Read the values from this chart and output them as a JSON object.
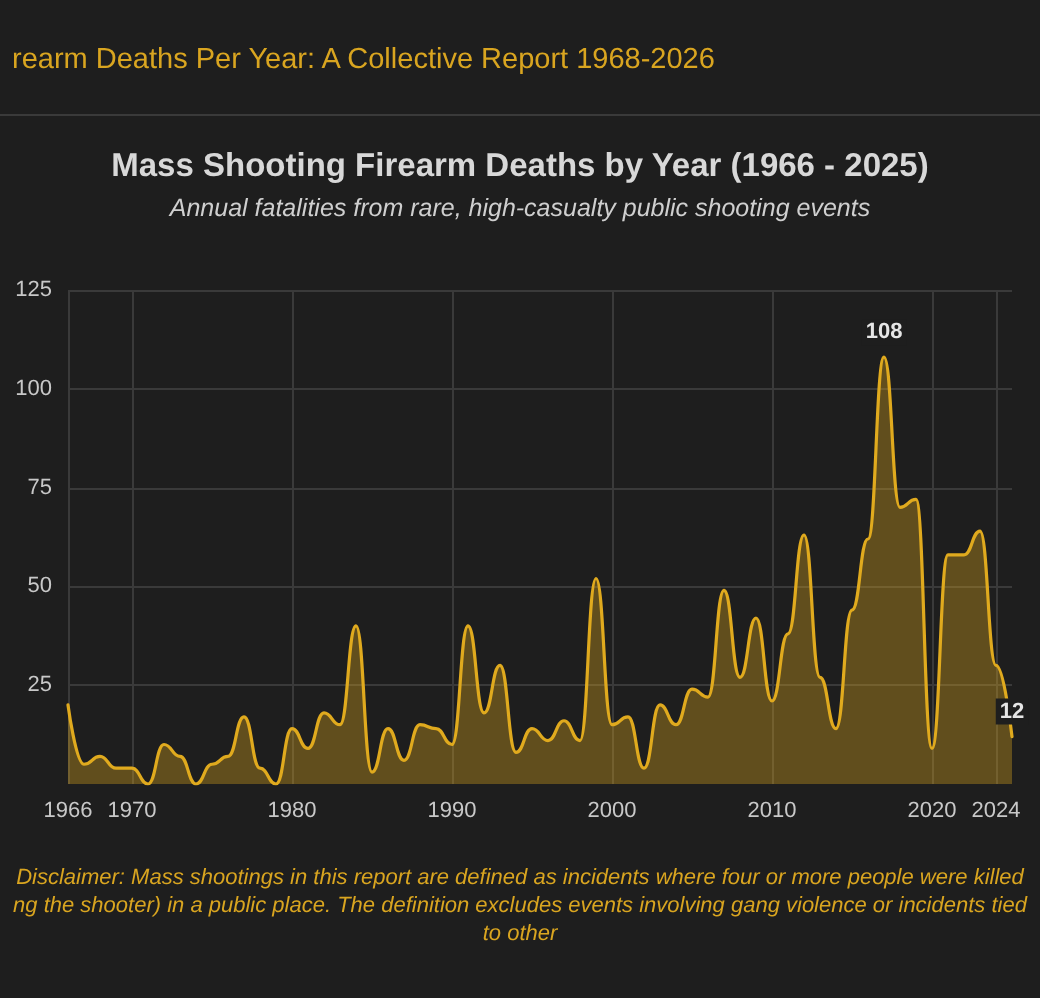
{
  "chart_data": {
    "type": "area",
    "title": "Mass Shooting Firearm Deaths by Year (1966 - 2025)",
    "subtitle": "Annual fatalities from rare, high-casualty public shooting events",
    "annotations": [
      "rearm Deaths Per Year: A Collective Report 1968-2026",
      "Disclaimer: Mass shootings in this report are defined as incidents where four or more people were killed ng the shooter) in a public place. The definition excludes events involving gang violence or incidents tied to other"
    ],
    "x": [
      1966,
      1967,
      1968,
      1969,
      1970,
      1971,
      1972,
      1973,
      1974,
      1975,
      1976,
      1977,
      1978,
      1979,
      1980,
      1981,
      1982,
      1983,
      1984,
      1985,
      1986,
      1987,
      1988,
      1989,
      1990,
      1991,
      1992,
      1993,
      1994,
      1995,
      1996,
      1997,
      1998,
      1999,
      2000,
      2001,
      2002,
      2003,
      2004,
      2005,
      2006,
      2007,
      2008,
      2009,
      2010,
      2011,
      2012,
      2013,
      2014,
      2015,
      2016,
      2017,
      2018,
      2019,
      2020,
      2021,
      2022,
      2023,
      2024,
      2025
    ],
    "series": [
      {
        "color": "#e0aa1e",
        "values": [
          20,
          5,
          7,
          4,
          4,
          0,
          10,
          7,
          0,
          5,
          7,
          17,
          4,
          0,
          14,
          9,
          18,
          15,
          40,
          3,
          14,
          6,
          15,
          14,
          10,
          40,
          18,
          30,
          8,
          14,
          11,
          16,
          11,
          52,
          15,
          17,
          4,
          20,
          15,
          24,
          22,
          49,
          27,
          42,
          21,
          38,
          63,
          27,
          14,
          44,
          62,
          108,
          70,
          72,
          9,
          58,
          58,
          64,
          30,
          12
        ],
        "value_labels": [
          null,
          null,
          null,
          null,
          null,
          null,
          null,
          null,
          null,
          null,
          null,
          null,
          null,
          null,
          null,
          null,
          null,
          null,
          null,
          null,
          null,
          null,
          null,
          null,
          null,
          null,
          null,
          null,
          null,
          null,
          null,
          null,
          null,
          null,
          null,
          null,
          null,
          null,
          null,
          null,
          null,
          null,
          null,
          null,
          null,
          null,
          null,
          null,
          null,
          null,
          null,
          "108",
          null,
          null,
          null,
          null,
          null,
          null,
          null,
          "12"
        ]
      }
    ],
    "xlim": [
      1966,
      2025
    ],
    "xticks": [
      1966,
      1970,
      1980,
      1990,
      2000,
      2010,
      2020,
      2024
    ],
    "ylim": [
      0,
      125
    ],
    "yticks": [
      25,
      50,
      75,
      100,
      125
    ],
    "grid": true,
    "marker": "none",
    "line_style": "solid"
  }
}
